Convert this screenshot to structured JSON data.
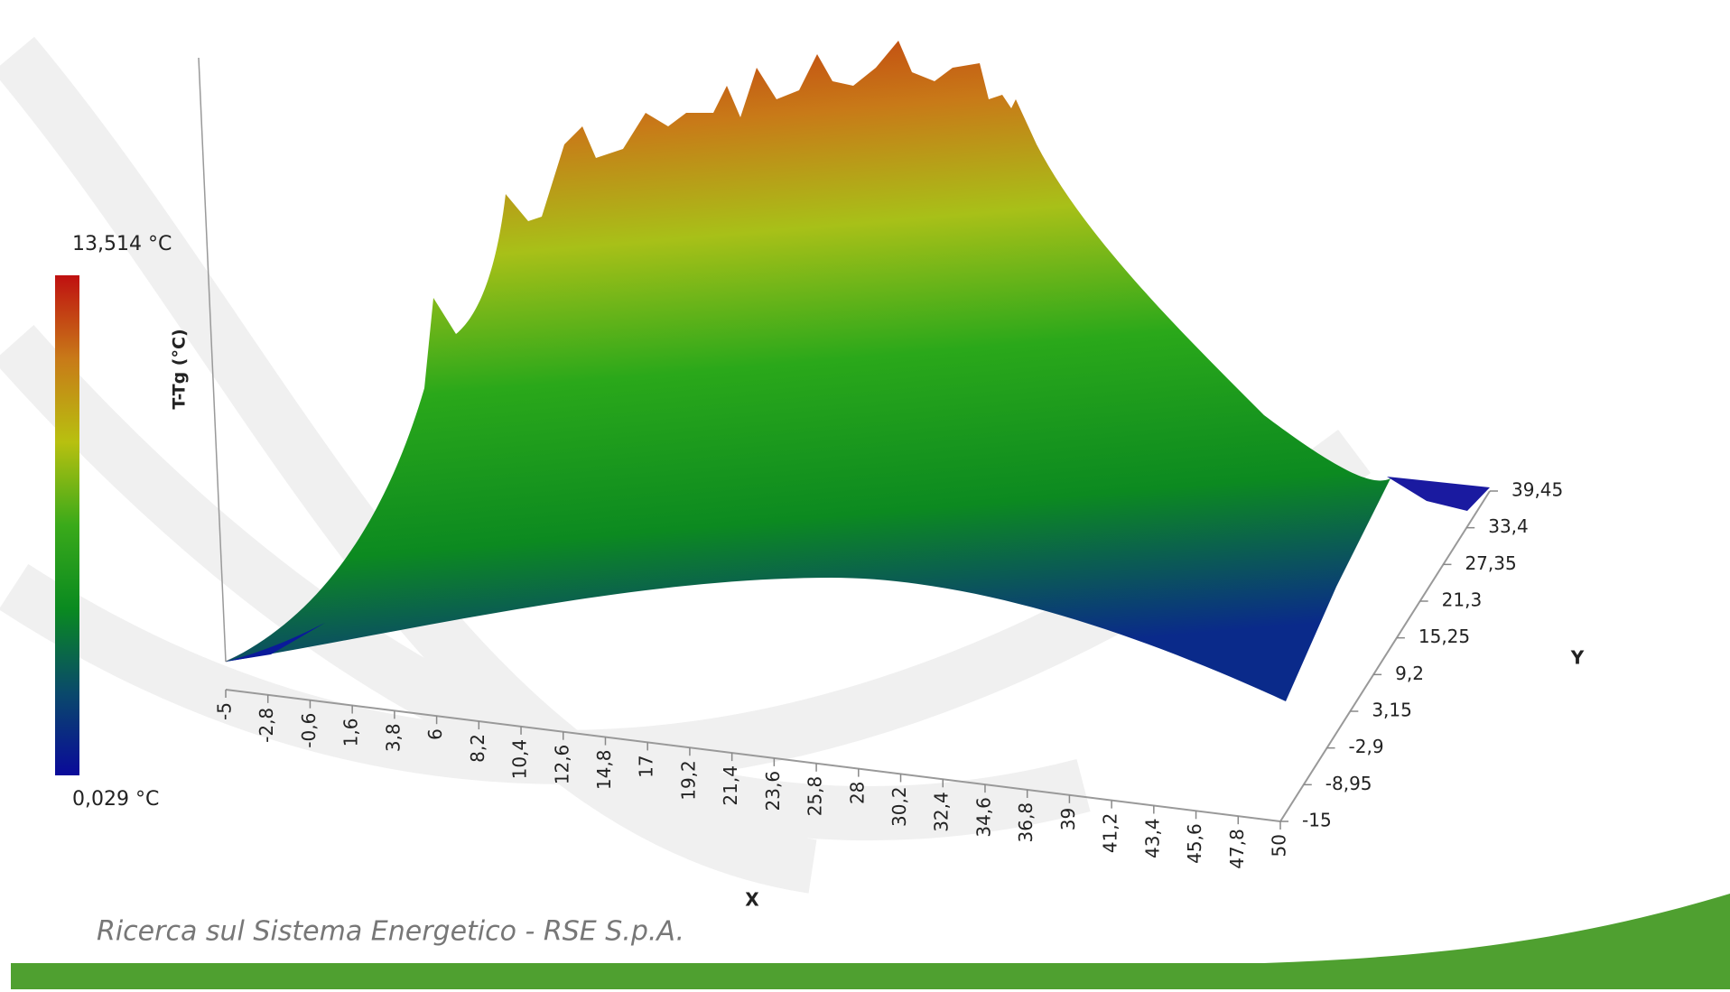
{
  "chart_data": {
    "type": "surface",
    "zlabel": "T-Tg (°C)",
    "xlabel": "X",
    "ylabel": "Y",
    "xlim": [
      -5,
      50
    ],
    "xticks": [
      -5,
      {
        "value": -2.8,
        "label": "-2,8"
      },
      {
        "value": -0.6,
        "label": "-0,6"
      },
      {
        "value": 1.6,
        "label": "1,6"
      },
      {
        "value": 3.8,
        "label": "3,8"
      },
      6,
      {
        "value": 8.2,
        "label": "8,2"
      },
      {
        "value": 10.4,
        "label": "10,4"
      },
      {
        "value": 12.6,
        "label": "12,6"
      },
      {
        "value": 14.8,
        "label": "14,8"
      },
      17,
      {
        "value": 19.2,
        "label": "19,2"
      },
      {
        "value": 21.4,
        "label": "21,4"
      },
      {
        "value": 23.6,
        "label": "23,6"
      },
      {
        "value": 25.8,
        "label": "25,8"
      },
      28,
      {
        "value": 30.2,
        "label": "30,2"
      },
      {
        "value": 32.4,
        "label": "32,4"
      },
      {
        "value": 34.6,
        "label": "34,6"
      },
      {
        "value": 36.8,
        "label": "36,8"
      },
      39,
      {
        "value": 41.2,
        "label": "41,2"
      },
      {
        "value": 43.4,
        "label": "43,4"
      },
      {
        "value": 45.6,
        "label": "45,6"
      },
      {
        "value": 47.8,
        "label": "47,8"
      },
      50
    ],
    "ylim": [
      -15,
      39.45
    ],
    "yticks": [
      -15,
      {
        "value": -8.95,
        "label": "-8,95"
      },
      {
        "value": -2.9,
        "label": "-2,9"
      },
      {
        "value": 3.15,
        "label": "3,15"
      },
      {
        "value": 9.2,
        "label": "9,2"
      },
      {
        "value": 15.25,
        "label": "15,25"
      },
      {
        "value": 21.3,
        "label": "21,3"
      },
      {
        "value": 27.35,
        "label": "27,35"
      },
      {
        "value": 33.4,
        "label": "33,4"
      },
      {
        "value": 39.45,
        "label": "39,45"
      }
    ],
    "colorbar": {
      "lim": [
        0.029,
        13.514
      ],
      "ticks": [
        {
          "value": 13.514,
          "label": "13,514 °C"
        },
        {
          "value": 0.029,
          "label": "0,029 °C"
        }
      ],
      "colors": [
        "#bf1010",
        "#c87a18",
        "#b8c010",
        "#3aaa1a",
        "#0a8a20",
        "#0a4a6a",
        "#0a0a9a"
      ]
    }
  },
  "footer": "Ricerca sul Sistema Energetico - RSE S.p.A."
}
